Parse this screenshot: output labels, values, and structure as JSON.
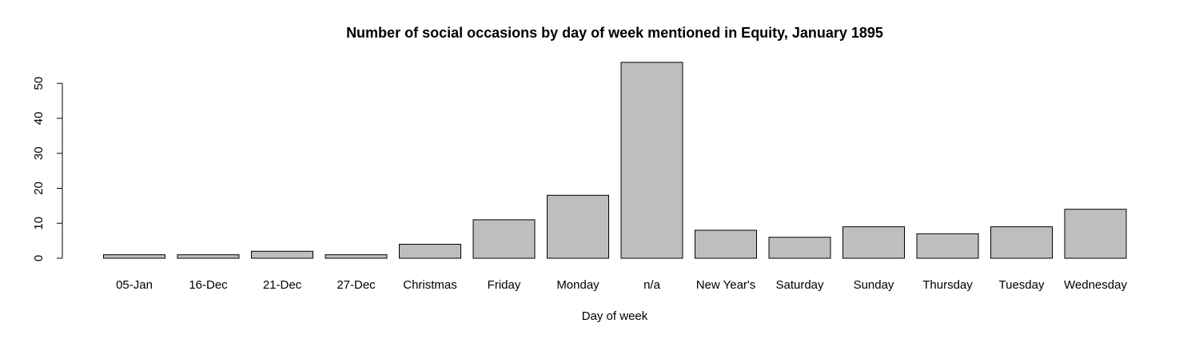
{
  "chart_data": {
    "type": "bar",
    "title": "Number of social occasions by day of week mentioned in Equity, January 1895",
    "xlabel": "Day of week",
    "ylabel": "",
    "categories": [
      "05-Jan",
      "16-Dec",
      "21-Dec",
      "27-Dec",
      "Christmas",
      "Friday",
      "Monday",
      "n/a",
      "New Year's",
      "Saturday",
      "Sunday",
      "Thursday",
      "Tuesday",
      "Wednesday"
    ],
    "values": [
      1,
      1,
      2,
      1,
      4,
      11,
      18,
      56,
      8,
      6,
      9,
      7,
      9,
      14
    ],
    "ylim": [
      0,
      56
    ],
    "yticks": [
      0,
      10,
      20,
      30,
      40,
      50
    ],
    "bar_color": "#bebebe",
    "grid": false,
    "legend": "none"
  }
}
